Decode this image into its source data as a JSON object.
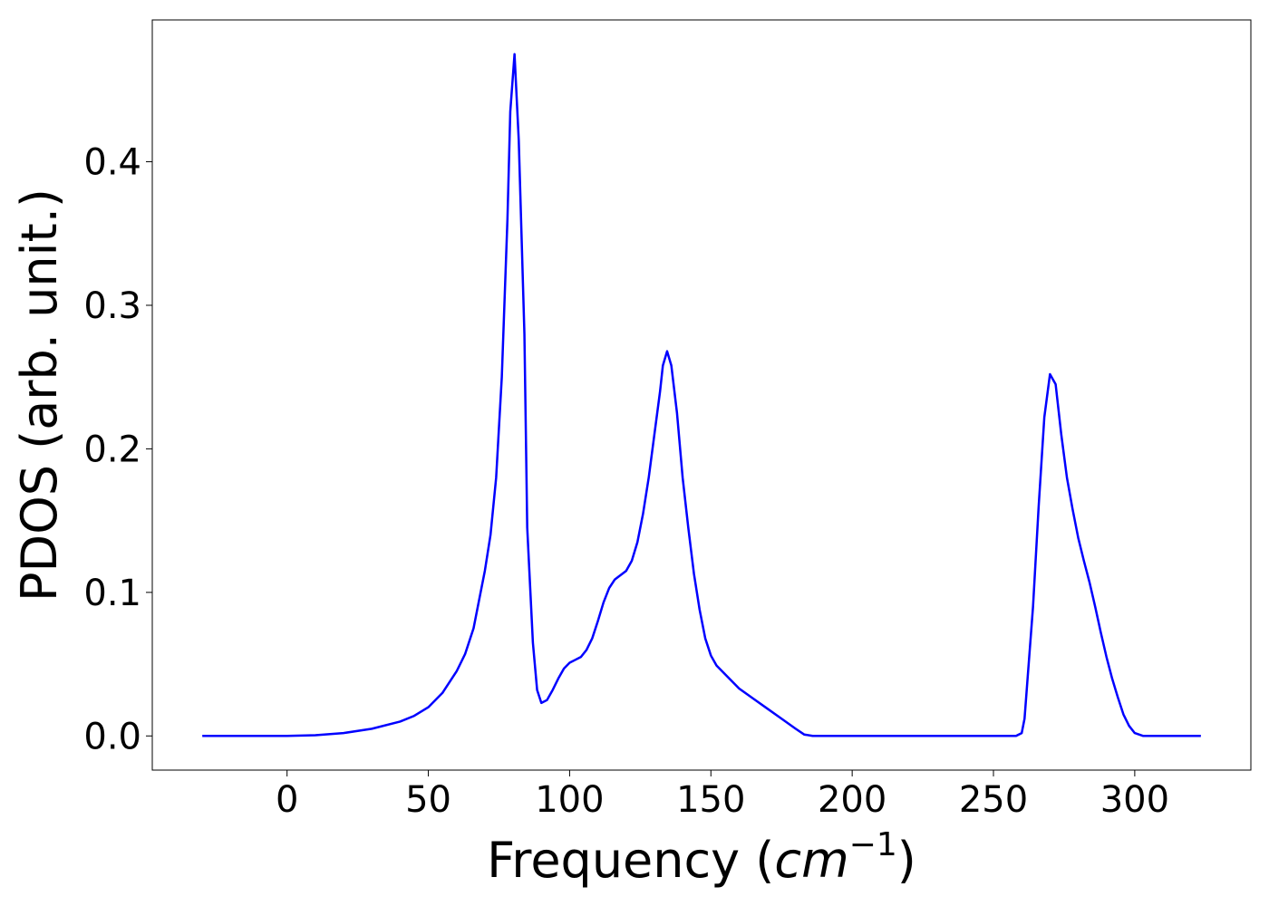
{
  "chart_data": {
    "type": "line",
    "xlabel": [
      "Frequency (",
      "cm",
      "−1",
      ")"
    ],
    "ylabel": "PDOS (arb. unit.)",
    "color": "#0000ff",
    "x": [
      -30,
      0,
      10,
      20,
      30,
      40,
      45,
      50,
      55,
      60,
      63,
      66,
      68,
      70,
      72,
      74,
      76,
      78,
      79,
      80.5,
      82,
      84,
      85,
      87,
      88.5,
      90,
      92,
      94,
      96,
      98,
      100,
      102,
      104,
      106,
      108,
      110,
      112,
      114,
      116,
      118,
      120,
      122,
      124,
      126,
      128,
      130,
      132,
      133,
      134.5,
      136,
      138,
      140,
      142,
      144,
      146,
      148,
      150,
      152,
      160,
      165,
      170,
      175,
      180,
      183,
      186,
      200,
      258,
      260,
      261,
      262,
      264,
      266,
      268,
      270,
      272,
      274,
      276,
      278,
      280,
      282,
      284,
      286,
      288,
      290,
      292,
      294,
      296,
      298,
      300,
      303,
      323.4
    ],
    "values": [
      0,
      0,
      0.0005,
      0.002,
      0.005,
      0.01,
      0.014,
      0.02,
      0.03,
      0.045,
      0.057,
      0.075,
      0.095,
      0.115,
      0.14,
      0.18,
      0.25,
      0.36,
      0.435,
      0.475,
      0.415,
      0.28,
      0.145,
      0.065,
      0.032,
      0.023,
      0.025,
      0.032,
      0.04,
      0.047,
      0.051,
      0.053,
      0.055,
      0.06,
      0.068,
      0.08,
      0.093,
      0.103,
      0.109,
      0.112,
      0.115,
      0.122,
      0.135,
      0.155,
      0.18,
      0.21,
      0.24,
      0.258,
      0.268,
      0.258,
      0.225,
      0.18,
      0.145,
      0.113,
      0.088,
      0.068,
      0.056,
      0.049,
      0.033,
      0.026,
      0.019,
      0.012,
      0.005,
      0.001,
      0,
      0,
      0,
      0.002,
      0.012,
      0.038,
      0.09,
      0.16,
      0.222,
      0.252,
      0.245,
      0.21,
      0.18,
      0.158,
      0.138,
      0.122,
      0.107,
      0.09,
      0.072,
      0.055,
      0.04,
      0.027,
      0.015,
      0.007,
      0.002,
      0,
      0
    ],
    "xlim": [
      -47.7,
      341.1
    ],
    "ylim": [
      -0.0238,
      0.4988
    ],
    "xticks": [
      0,
      50,
      100,
      150,
      200,
      250,
      300
    ],
    "yticks": [
      {
        "value": 0,
        "label": "0.0"
      },
      0.1,
      0.2,
      0.3,
      0.4
    ]
  }
}
